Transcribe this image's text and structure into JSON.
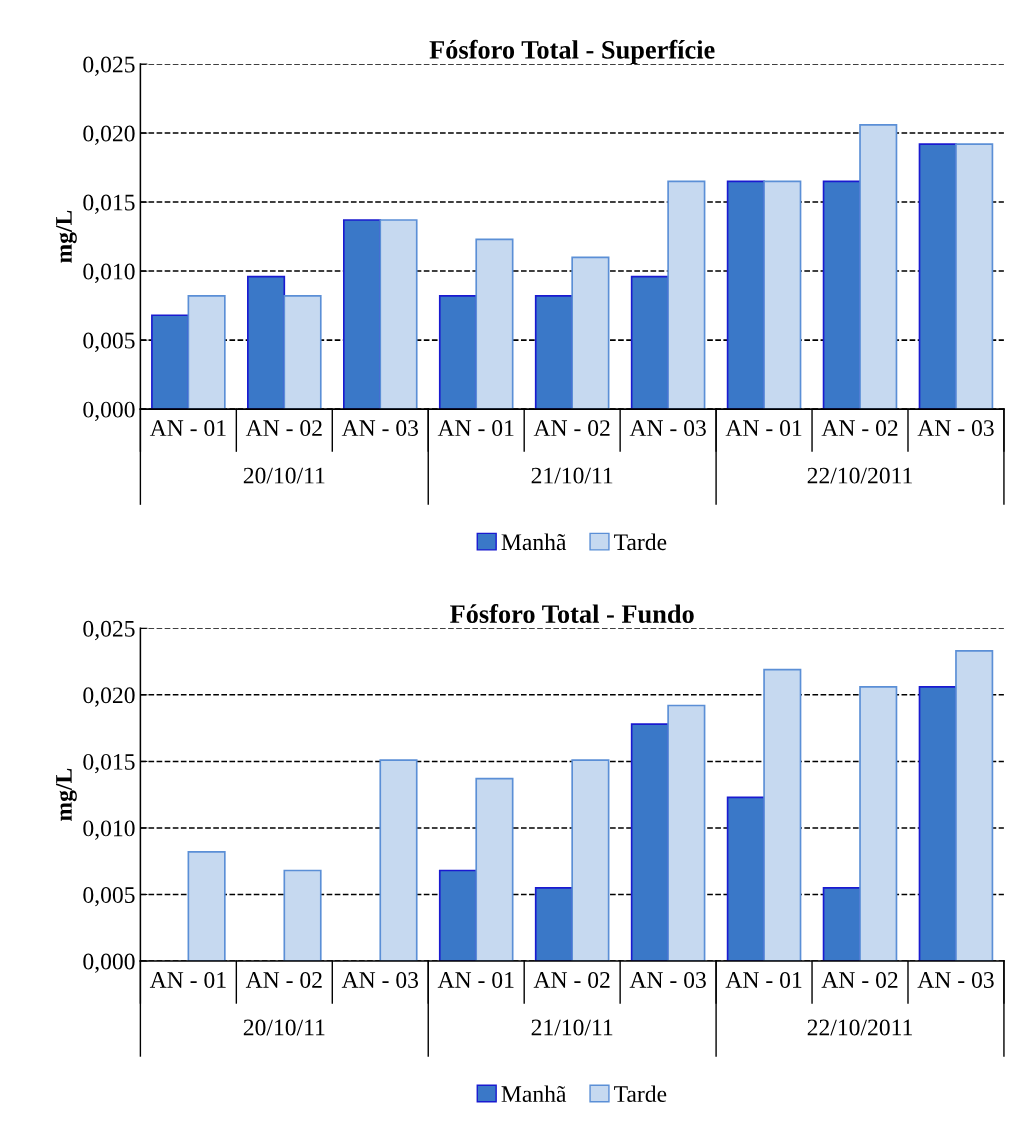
{
  "chart_data": [
    {
      "type": "bar",
      "title": "Fósforo Total - Superfície",
      "ylabel": "mg/L",
      "categories": [
        "AN - 01",
        "AN - 02",
        "AN - 03",
        "AN - 01",
        "AN - 02",
        "AN - 03",
        "AN - 01",
        "AN - 02",
        "AN - 03"
      ],
      "annotations": [
        "20/10/11",
        "21/10/11",
        "22/10/2011"
      ],
      "series": [
        {
          "name": "Manhã",
          "color": "#3a78c8",
          "values": [
            0.0068,
            0.0096,
            0.0137,
            0.0082,
            0.0082,
            0.0096,
            0.0165,
            0.0165,
            0.0192
          ]
        },
        {
          "name": "Tarde",
          "color": "#c6d9f0",
          "values": [
            0.0082,
            0.0082,
            0.0137,
            0.0123,
            0.011,
            0.0165,
            0.0165,
            0.0206,
            0.0192
          ]
        }
      ],
      "ylim": [
        0,
        0.025
      ],
      "yticks": [
        {
          "value": 0,
          "label": "0,000"
        },
        {
          "value": 0.005,
          "label": "0,005"
        },
        {
          "value": 0.01,
          "label": "0,010"
        },
        {
          "value": 0.015,
          "label": "0,015"
        },
        {
          "value": 0.02,
          "label": "0,020"
        },
        {
          "value": 0.025,
          "label": "0,025"
        }
      ],
      "grid": "y",
      "line_style": "dashed",
      "legend": "bottom"
    },
    {
      "type": "bar",
      "title": "Fósforo Total - Fundo",
      "ylabel": "mg/L",
      "categories": [
        "AN - 01",
        "AN - 02",
        "AN - 03",
        "AN - 01",
        "AN - 02",
        "AN - 03",
        "AN - 01",
        "AN - 02",
        "AN - 03"
      ],
      "annotations": [
        "20/10/11",
        "21/10/11",
        "22/10/2011"
      ],
      "series": [
        {
          "name": "Manhã",
          "color": "#3a78c8",
          "values": [
            null,
            null,
            null,
            0.0068,
            0.0055,
            0.0178,
            0.0123,
            0.0055,
            0.0206
          ]
        },
        {
          "name": "Tarde",
          "color": "#c6d9f0",
          "values": [
            0.0082,
            0.0068,
            0.0151,
            0.0137,
            0.0151,
            0.0192,
            0.0219,
            0.0206,
            0.0233
          ]
        }
      ],
      "ylim": [
        0,
        0.025
      ],
      "yticks": [
        {
          "value": 0,
          "label": "0,000"
        },
        {
          "value": 0.005,
          "label": "0,005"
        },
        {
          "value": 0.01,
          "label": "0,010"
        },
        {
          "value": 0.015,
          "label": "0,015"
        },
        {
          "value": 0.02,
          "label": "0,020"
        },
        {
          "value": 0.025,
          "label": "0,025"
        }
      ],
      "grid": "y",
      "line_style": "dashed",
      "legend": "bottom"
    }
  ]
}
